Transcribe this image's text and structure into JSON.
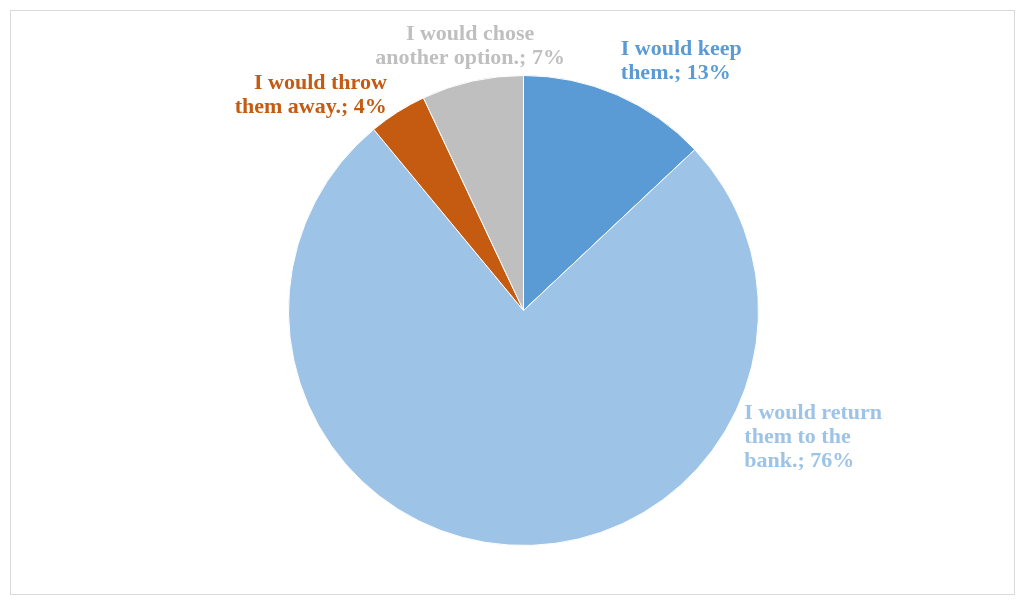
{
  "chart_data": {
    "type": "pie",
    "categories": [
      "I would keep them.",
      "I would return them to the bank.",
      "I would throw them away.",
      "I would chose another option."
    ],
    "values": [
      13,
      76,
      4,
      7
    ],
    "value_labels": [
      "13%",
      "76%",
      "4%",
      "7%"
    ],
    "colors": [
      "#5b9bd5",
      "#9dc3e6",
      "#c55a11",
      "#bfbfbf"
    ]
  }
}
